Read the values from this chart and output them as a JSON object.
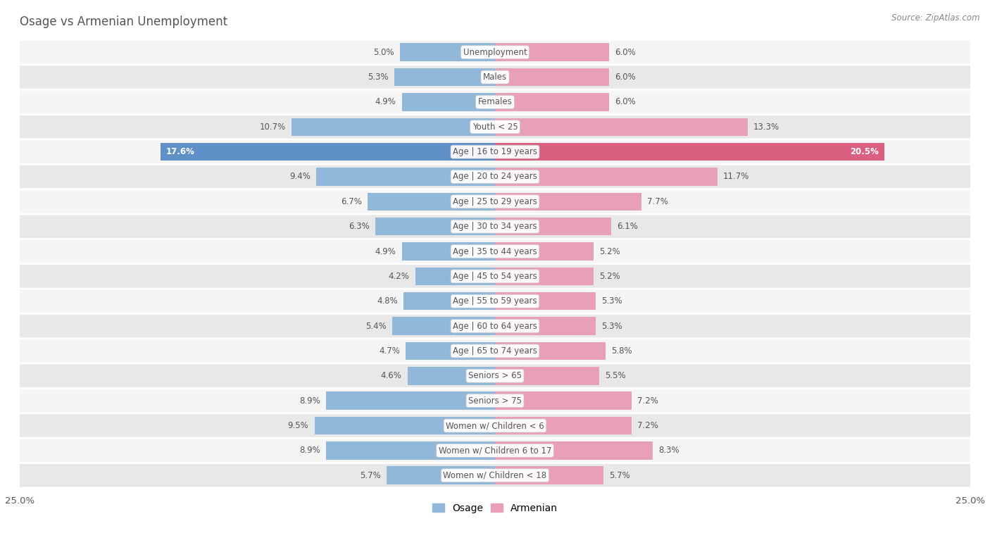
{
  "title": "Osage vs Armenian Unemployment",
  "source": "Source: ZipAtlas.com",
  "categories": [
    "Unemployment",
    "Males",
    "Females",
    "Youth < 25",
    "Age | 16 to 19 years",
    "Age | 20 to 24 years",
    "Age | 25 to 29 years",
    "Age | 30 to 34 years",
    "Age | 35 to 44 years",
    "Age | 45 to 54 years",
    "Age | 55 to 59 years",
    "Age | 60 to 64 years",
    "Age | 65 to 74 years",
    "Seniors > 65",
    "Seniors > 75",
    "Women w/ Children < 6",
    "Women w/ Children 6 to 17",
    "Women w/ Children < 18"
  ],
  "osage": [
    5.0,
    5.3,
    4.9,
    10.7,
    17.6,
    9.4,
    6.7,
    6.3,
    4.9,
    4.2,
    4.8,
    5.4,
    4.7,
    4.6,
    8.9,
    9.5,
    8.9,
    5.7
  ],
  "armenian": [
    6.0,
    6.0,
    6.0,
    13.3,
    20.5,
    11.7,
    7.7,
    6.1,
    5.2,
    5.2,
    5.3,
    5.3,
    5.8,
    5.5,
    7.2,
    7.2,
    8.3,
    5.7
  ],
  "osage_color": "#92b8d9",
  "armenian_color": "#e8a0b8",
  "osage_highlight_color": "#6090c8",
  "armenian_highlight_color": "#d96080",
  "row_color_even": "#f5f5f5",
  "row_color_odd": "#e8e8e8",
  "background_color": "#ffffff",
  "xlim": 25.0,
  "legend_labels": [
    "Osage",
    "Armenian"
  ],
  "title_color": "#555555",
  "source_color": "#888888",
  "label_color": "#555555"
}
